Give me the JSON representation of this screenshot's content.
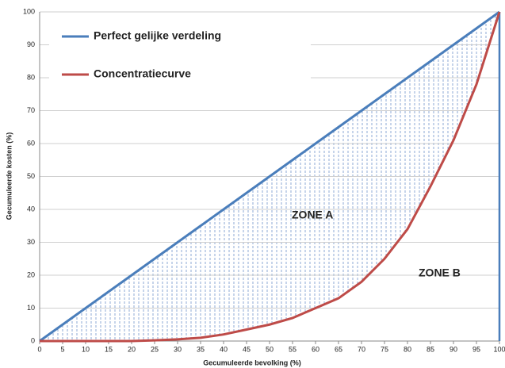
{
  "chart_data": {
    "type": "line",
    "xlabel": "Gecumuleerde bevolking (%)",
    "ylabel": "Gecumuleerde kosten (%)",
    "x": [
      0,
      5,
      10,
      15,
      20,
      25,
      30,
      35,
      40,
      45,
      50,
      55,
      60,
      65,
      70,
      75,
      80,
      85,
      90,
      95,
      100
    ],
    "series": [
      {
        "name": "Perfect gelijke verdeling",
        "color": "#4a7ebb",
        "values": [
          0,
          5,
          10,
          15,
          20,
          25,
          30,
          35,
          40,
          45,
          50,
          55,
          60,
          65,
          70,
          75,
          80,
          85,
          90,
          95,
          100
        ]
      },
      {
        "name": "Concentratiecurve",
        "color": "#be4b48",
        "values": [
          0,
          0,
          0,
          0,
          0,
          0.2,
          0.5,
          1,
          2,
          3.5,
          5,
          7,
          10,
          13,
          18,
          25,
          34,
          47,
          61,
          78,
          100
        ]
      }
    ],
    "annotations": [
      "ZONE A",
      "ZONE B"
    ],
    "xlim": [
      0,
      100
    ],
    "xticks": [
      0,
      5,
      10,
      15,
      20,
      25,
      30,
      35,
      40,
      45,
      50,
      55,
      60,
      65,
      70,
      75,
      80,
      85,
      90,
      95,
      100
    ],
    "ylim": [
      0,
      100
    ],
    "yticks": [
      0,
      10,
      20,
      30,
      40,
      50,
      60,
      70,
      80,
      90,
      100
    ],
    "grid": true,
    "legend": "upper left"
  }
}
